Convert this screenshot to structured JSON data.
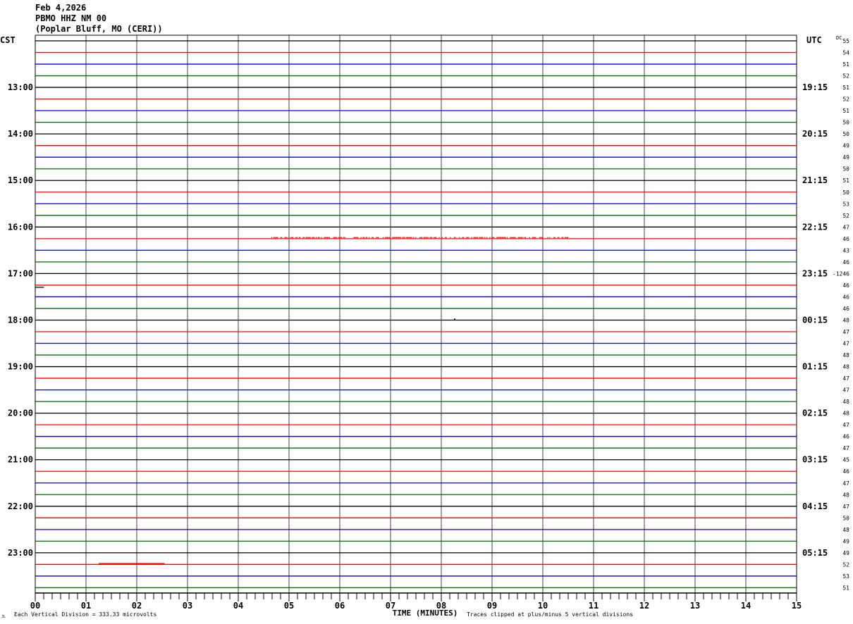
{
  "header": {
    "date": "Feb 4,2026",
    "station": "PBMO HHZ NM 00",
    "location": "(Poplar Bluff, MO (CERI))"
  },
  "chart_data": {
    "type": "line",
    "left_axis_title": "CST",
    "right_axis_title": "UTC",
    "dc_title": "DC",
    "xlabel": "TIME (MINUTES)",
    "x_ticks": [
      "00",
      "01",
      "02",
      "03",
      "04",
      "05",
      "06",
      "07",
      "08",
      "09",
      "10",
      "11",
      "12",
      "13",
      "14",
      "15"
    ],
    "xlim": [
      0,
      15
    ],
    "trace_colors": [
      "#000000",
      "#ff0000",
      "#0000ff",
      "#007000"
    ],
    "grid_color": "#808080",
    "cst_labels": [
      "13:00",
      "14:00",
      "15:00",
      "16:00",
      "17:00",
      "18:00",
      "19:00",
      "20:00",
      "21:00",
      "22:00",
      "23:00"
    ],
    "utc_labels": [
      "19:15",
      "20:15",
      "21:15",
      "22:15",
      "23:15",
      "00:15",
      "01:15",
      "02:15",
      "03:15",
      "04:15",
      "05:15"
    ],
    "dc_offsets": [
      "55",
      "54",
      "51",
      "52",
      "51",
      "52",
      "51",
      "50",
      "50",
      "49",
      "49",
      "50",
      "51",
      "50",
      "53",
      "52",
      "47",
      "46",
      "43",
      "46",
      "-1246",
      "46",
      "46",
      "46",
      "48",
      "47",
      "47",
      "48",
      "48",
      "47",
      "47",
      "48",
      "48",
      "47",
      "46",
      "47",
      "45",
      "46",
      "47",
      "48",
      "47",
      "50",
      "48",
      "49",
      "49",
      "52",
      "53",
      "51"
    ],
    "signals": [
      {
        "row": 17,
        "start_min": 4.65,
        "end_min": 10.5,
        "kind": "noise"
      },
      {
        "row": 21,
        "start_min": 0.0,
        "end_min": 0.17,
        "kind": "offset"
      },
      {
        "row": 24,
        "start_min": 8.25,
        "end_min": 8.3,
        "kind": "dot"
      },
      {
        "row": 45,
        "start_min": 1.25,
        "end_min": 2.55,
        "kind": "step"
      }
    ],
    "footer_scale": "Each Vertical Division =  333.33 microvolts",
    "footer_clip": "Traces clipped at plus/minus 5 vertical divisions",
    "corner_mark": "JL"
  }
}
